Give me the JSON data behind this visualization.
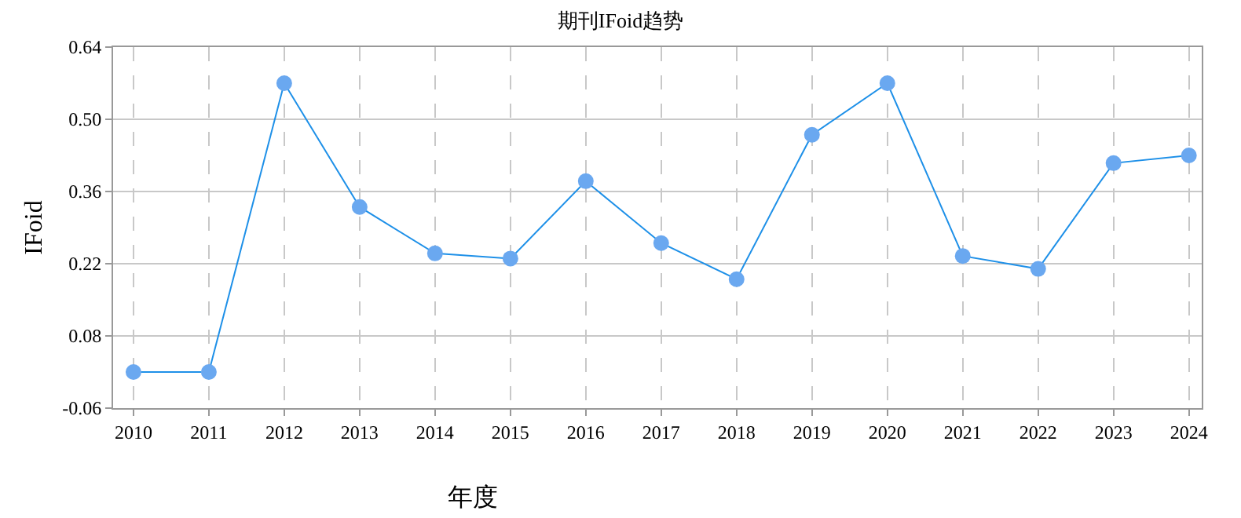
{
  "chart_data": {
    "type": "line",
    "title": "期刊IFoid趋势",
    "xlabel": "年度",
    "ylabel": "IFoid",
    "categories": [
      "2010",
      "2011",
      "2012",
      "2013",
      "2014",
      "2015",
      "2016",
      "2017",
      "2018",
      "2019",
      "2020",
      "2021",
      "2022",
      "2023",
      "2024"
    ],
    "series": [
      {
        "color": "#1e90e8",
        "values": [
          0.01,
          0.01,
          0.57,
          0.33,
          0.24,
          0.23,
          0.38,
          0.26,
          0.19,
          0.47,
          0.57,
          0.235,
          0.21,
          0.415,
          0.43
        ]
      }
    ],
    "ylim": [
      -0.06,
      0.64
    ],
    "yticks": [
      -0.06,
      0.08,
      0.22,
      0.36,
      {
        "value": 0.5,
        "label": "0.50"
      },
      0.64
    ],
    "grid": true,
    "marker": "circle",
    "line_style": "solid",
    "legend": false
  }
}
